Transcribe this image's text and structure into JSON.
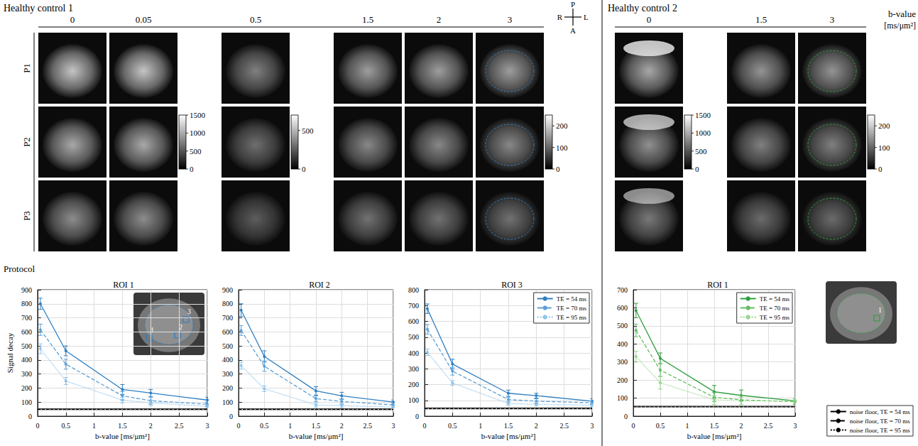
{
  "figure": {
    "panels": [
      {
        "title": "Healthy control 1",
        "rows": [
          "P1",
          "P2",
          "P3"
        ],
        "groups": [
          {
            "b_values": [
              "0",
              "0.05"
            ],
            "colorbar": {
              "range": [
                0,
                1500
              ],
              "ticks": [
                0,
                500,
                1000,
                1500
              ]
            }
          },
          {
            "b_values": [
              "0.5"
            ],
            "colorbar": {
              "range": [
                0,
                700
              ],
              "ticks": [
                0,
                500
              ]
            }
          },
          {
            "b_values": [
              "1.5",
              "2",
              "3"
            ],
            "colorbar": {
              "range": [
                0,
                250
              ],
              "ticks": [
                0,
                100,
                200
              ]
            }
          }
        ],
        "inset_labels": [
          "1",
          "2",
          "3"
        ]
      },
      {
        "title": "Healthy control 2",
        "groups": [
          {
            "b_values": [
              "0"
            ],
            "colorbar": {
              "range": [
                0,
                1500
              ],
              "ticks": [
                0,
                500,
                1000,
                1500
              ]
            }
          },
          {
            "b_values": [
              "1.5",
              "3"
            ],
            "colorbar": {
              "range": [
                0,
                250
              ],
              "ticks": [
                0,
                100,
                200
              ]
            }
          }
        ],
        "inset_labels": [
          "1"
        ]
      }
    ],
    "b_value_label": "b-value",
    "b_value_unit": "[ms/μm²]",
    "orientation": {
      "top": "P",
      "bottom": "A",
      "left": "R",
      "right": "L"
    },
    "section_label": "Protocol"
  },
  "chart_data": [
    {
      "type": "line",
      "title": "ROI 1",
      "x_label": "b-value [ms/μm²]",
      "y_label": "Signal decay",
      "x": [
        0.05,
        0.5,
        1.5,
        2,
        3
      ],
      "xlim": [
        0,
        3
      ],
      "xticks": [
        0,
        0.5,
        1,
        1.5,
        2,
        2.5,
        3
      ],
      "ylim": [
        0,
        900
      ],
      "yticks": [
        0,
        100,
        200,
        300,
        400,
        500,
        600,
        700,
        800,
        900
      ],
      "grid": true,
      "series": [
        {
          "name": "TE = 54 ms",
          "color": "#2f7fc1",
          "line_style": "solid",
          "marker": "circle",
          "values": [
            800,
            465,
            190,
            165,
            115
          ],
          "errors": [
            40,
            35,
            35,
            25,
            20
          ]
        },
        {
          "name": "TE = 70 ms",
          "color": "#5b9fd6",
          "line_style": "dashed",
          "marker": "circle",
          "values": [
            615,
            370,
            145,
            110,
            85
          ],
          "errors": [
            40,
            35,
            30,
            25,
            15
          ]
        },
        {
          "name": "TE = 95 ms",
          "color": "#8fc3ea",
          "line_style": "dotted",
          "marker": "circle",
          "values": [
            480,
            250,
            115,
            95,
            70
          ],
          "errors": [
            35,
            25,
            20,
            20,
            10
          ]
        }
      ],
      "noise_floor": [
        {
          "name": "noise floor, TE = 54 ms",
          "value": 52,
          "color": "#000000",
          "line_style": "solid"
        },
        {
          "name": "noise floor, TE = 70 ms",
          "value": 48,
          "color": "#000000",
          "line_style": "dashed"
        },
        {
          "name": "noise floor, TE = 95 ms",
          "value": 45,
          "color": "#000000",
          "line_style": "dotted"
        }
      ]
    },
    {
      "type": "line",
      "title": "ROI 2",
      "x_label": "b-value [ms/μm²]",
      "x": [
        0.05,
        0.5,
        1.5,
        2,
        3
      ],
      "xlim": [
        0,
        3
      ],
      "xticks": [
        0,
        0.5,
        1,
        1.5,
        2,
        2.5,
        3
      ],
      "ylim": [
        0,
        900
      ],
      "yticks": [
        0,
        100,
        200,
        300,
        400,
        500,
        600,
        700,
        800,
        900
      ],
      "grid": true,
      "series": [
        {
          "name": "TE = 54 ms",
          "color": "#2f7fc1",
          "line_style": "solid",
          "marker": "circle",
          "values": [
            755,
            425,
            180,
            145,
            100
          ],
          "errors": [
            45,
            40,
            30,
            25,
            15
          ]
        },
        {
          "name": "TE = 70 ms",
          "color": "#5b9fd6",
          "line_style": "dashed",
          "marker": "circle",
          "values": [
            610,
            355,
            125,
            105,
            80
          ],
          "errors": [
            35,
            35,
            20,
            20,
            15
          ]
        },
        {
          "name": "TE = 95 ms",
          "color": "#8fc3ea",
          "line_style": "dotted",
          "marker": "circle",
          "values": [
            360,
            195,
            80,
            75,
            65
          ],
          "errors": [
            25,
            20,
            15,
            15,
            10
          ]
        }
      ],
      "noise_floor": [
        {
          "name": "noise floor, TE = 54 ms",
          "value": 52,
          "color": "#000000",
          "line_style": "solid"
        },
        {
          "name": "noise floor, TE = 70 ms",
          "value": 48,
          "color": "#000000",
          "line_style": "dashed"
        },
        {
          "name": "noise floor, TE = 95 ms",
          "value": 45,
          "color": "#000000",
          "line_style": "dotted"
        }
      ]
    },
    {
      "type": "line",
      "title": "ROI 3",
      "x_label": "b-value [ms/μm²]",
      "x": [
        0.05,
        0.5,
        1.5,
        2,
        3
      ],
      "xlim": [
        0,
        3
      ],
      "xticks": [
        0,
        0.5,
        1,
        1.5,
        2,
        2.5,
        3
      ],
      "ylim": [
        0,
        800
      ],
      "yticks": [
        0,
        100,
        200,
        300,
        400,
        500,
        600,
        700,
        800
      ],
      "grid": true,
      "legend": "upper right",
      "series": [
        {
          "name": "TE = 54 ms",
          "color": "#2f7fc1",
          "line_style": "solid",
          "marker": "circle",
          "values": [
            680,
            330,
            145,
            130,
            95
          ],
          "errors": [
            30,
            30,
            20,
            15,
            15
          ]
        },
        {
          "name": "TE = 70 ms",
          "color": "#5b9fd6",
          "line_style": "dashed",
          "marker": "circle",
          "values": [
            550,
            285,
            105,
            95,
            85
          ],
          "errors": [
            30,
            25,
            15,
            15,
            10
          ]
        },
        {
          "name": "TE = 95 ms",
          "color": "#8fc3ea",
          "line_style": "dotted",
          "marker": "circle",
          "values": [
            405,
            210,
            80,
            75,
            70
          ],
          "errors": [
            20,
            15,
            10,
            10,
            10
          ]
        }
      ],
      "noise_floor": [
        {
          "name": "noise floor, TE = 54 ms",
          "value": 52,
          "color": "#000000",
          "line_style": "solid"
        },
        {
          "name": "noise floor, TE = 70 ms",
          "value": 48,
          "color": "#000000",
          "line_style": "dashed"
        },
        {
          "name": "noise floor, TE = 95 ms",
          "value": 45,
          "color": "#000000",
          "line_style": "dotted"
        }
      ]
    },
    {
      "type": "line",
      "title": "ROI 1",
      "x_label": "b-value [ms/μm²]",
      "x": [
        0.05,
        0.5,
        1.5,
        2,
        3
      ],
      "xlim": [
        0,
        3
      ],
      "xticks": [
        0,
        0.5,
        1,
        1.5,
        2,
        2.5,
        3
      ],
      "ylim": [
        0,
        700
      ],
      "yticks": [
        0,
        100,
        200,
        300,
        400,
        500,
        600,
        700
      ],
      "grid": true,
      "legend": "upper right",
      "series": [
        {
          "name": "TE = 54 ms",
          "color": "#2e9e3e",
          "line_style": "solid",
          "marker": "circle",
          "values": [
            585,
            320,
            135,
            115,
            85
          ],
          "errors": [
            40,
            30,
            35,
            30,
            15
          ]
        },
        {
          "name": "TE = 70 ms",
          "color": "#62bd5f",
          "line_style": "dashed",
          "marker": "circle",
          "values": [
            475,
            255,
            105,
            90,
            80
          ],
          "errors": [
            35,
            35,
            25,
            25,
            15
          ]
        },
        {
          "name": "TE = 95 ms",
          "color": "#97d68f",
          "line_style": "dotted",
          "marker": "circle",
          "values": [
            330,
            185,
            90,
            85,
            85
          ],
          "errors": [
            30,
            35,
            25,
            20,
            15
          ]
        }
      ],
      "noise_floor": [
        {
          "name": "noise floor, TE = 54 ms",
          "value": 55,
          "color": "#000000",
          "line_style": "solid"
        },
        {
          "name": "noise floor, TE = 70 ms",
          "value": 52,
          "color": "#000000",
          "line_style": "dashed"
        },
        {
          "name": "noise floor, TE = 95 ms",
          "value": 50,
          "color": "#000000",
          "line_style": "dotted"
        }
      ]
    }
  ]
}
